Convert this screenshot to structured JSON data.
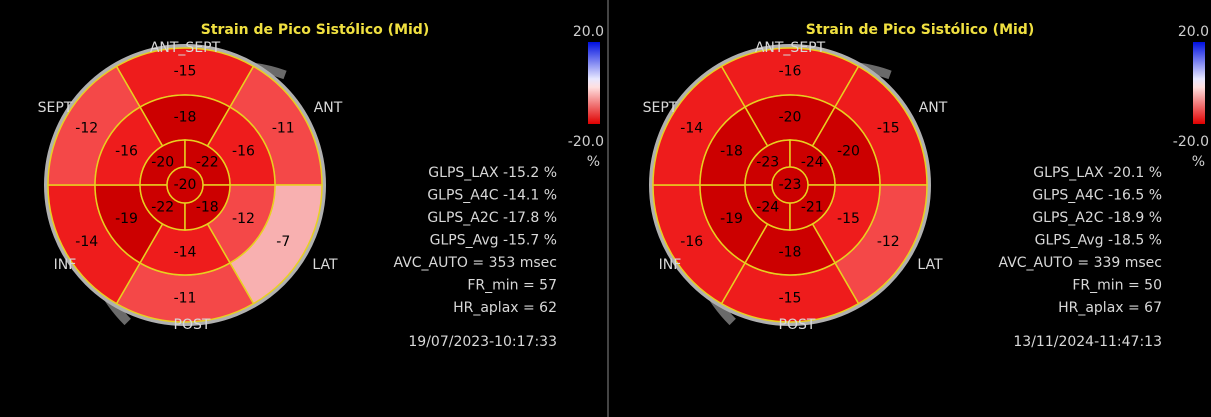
{
  "panels": [
    {
      "title": "Strain de Pico Sistólico (Mid)",
      "views": [
        "ANT_SEPT",
        "ANT",
        "LAT",
        "POST",
        "INF",
        "SEPT"
      ],
      "outer": [
        -15,
        -11,
        -7,
        -11,
        -14,
        -12
      ],
      "mid": [
        -18,
        -16,
        -12,
        -14,
        -19,
        -16
      ],
      "inner": [
        -20,
        -22,
        -22,
        -18
      ],
      "apex": -20,
      "scale_max": "20.0",
      "scale_min": "-20.0",
      "scale_unit": "%",
      "metrics": [
        "GLPS_LAX -15.2 %",
        "GLPS_A4C -14.1 %",
        "GLPS_A2C -17.8 %",
        "GLPS_Avg -15.7 %",
        "AVC_AUTO = 353 msec",
        "FR_min = 57",
        "HR_aplax = 62"
      ],
      "timestamp": "19/07/2023-10:17:33"
    },
    {
      "title": "Strain de Pico Sistólico (Mid)",
      "views": [
        "ANT_SEPT",
        "ANT",
        "LAT",
        "POST",
        "INF",
        "SEPT"
      ],
      "outer": [
        -16,
        -15,
        -12,
        -15,
        -16,
        -14
      ],
      "mid": [
        -20,
        -20,
        -15,
        -18,
        -19,
        -18
      ],
      "inner": [
        -23,
        -24,
        -24,
        -21
      ],
      "apex": -23,
      "scale_max": "20.0",
      "scale_min": "-20.0",
      "scale_unit": "%",
      "metrics": [
        "GLPS_LAX -20.1 %",
        "GLPS_A4C -16.5 %",
        "GLPS_A2C -18.9 %",
        "GLPS_Avg -18.5 %",
        "AVC_AUTO = 339 msec",
        "FR_min = 50",
        "HR_aplax = 67"
      ],
      "timestamp": "13/11/2024-11:47:13"
    }
  ]
}
